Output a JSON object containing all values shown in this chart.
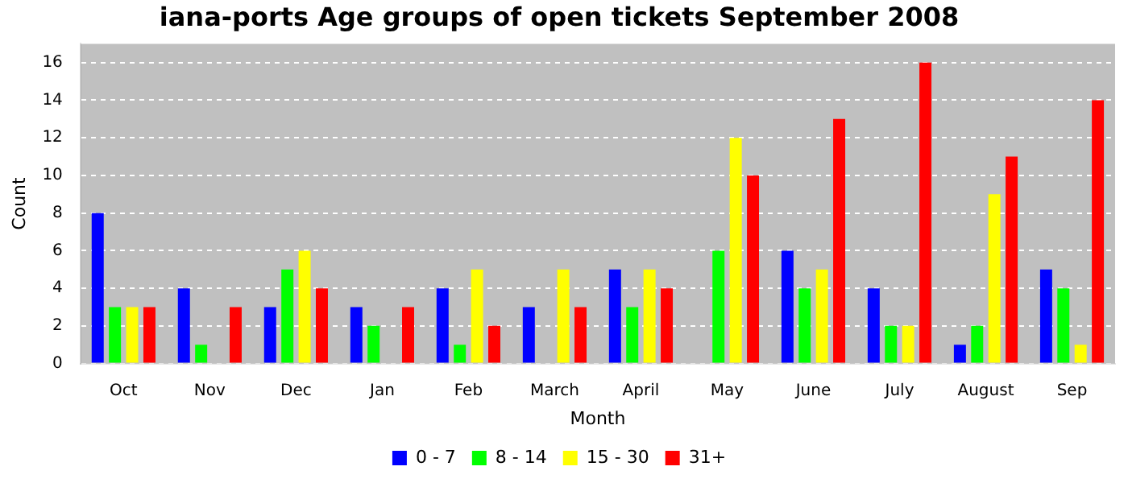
{
  "chart_data": {
    "type": "bar",
    "title": "iana-ports Age groups of open tickets September 2008",
    "xlabel": "Month",
    "ylabel": "Count",
    "categories": [
      "Oct",
      "Nov",
      "Dec",
      "Jan",
      "Feb",
      "March",
      "April",
      "May",
      "June",
      "July",
      "August",
      "Sep"
    ],
    "series": [
      {
        "name": "0 - 7",
        "color": "#0000ff",
        "values": [
          8,
          4,
          3,
          3,
          4,
          3,
          5,
          0,
          6,
          4,
          1,
          5
        ]
      },
      {
        "name": "8 - 14",
        "color": "#00ff00",
        "values": [
          3,
          1,
          5,
          2,
          1,
          0,
          3,
          6,
          4,
          2,
          2,
          4
        ]
      },
      {
        "name": "15 - 30",
        "color": "#ffff00",
        "values": [
          3,
          0,
          6,
          0,
          5,
          5,
          5,
          12,
          5,
          2,
          9,
          1
        ]
      },
      {
        "name": "31+",
        "color": "#ff0000",
        "values": [
          3,
          3,
          4,
          3,
          2,
          3,
          4,
          10,
          13,
          16,
          11,
          14
        ]
      }
    ],
    "ylim": [
      0,
      17
    ],
    "yticks": [
      0,
      2,
      4,
      6,
      8,
      10,
      12,
      14,
      16
    ],
    "grid": "y",
    "legend": "bottom"
  }
}
